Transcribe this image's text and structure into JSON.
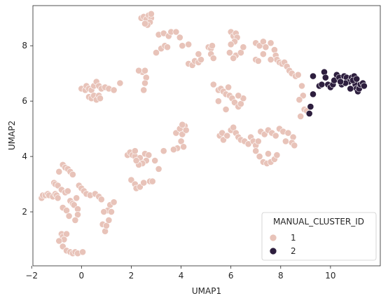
{
  "chart_data": {
    "type": "scatter",
    "title": "",
    "xlabel": "UMAP1",
    "ylabel": "UMAP2",
    "xlim": [
      -1.95,
      12.0
    ],
    "ylim": [
      0.05,
      9.45
    ],
    "xticks": [
      "-2",
      "0",
      "2",
      "4",
      "6",
      "8",
      "10"
    ],
    "yticks": [
      "2",
      "4",
      "6",
      "8"
    ],
    "grid": false,
    "legend": {
      "title": "MANUAL_CLUSTER_ID",
      "placement": "bottom-right"
    },
    "series": [
      {
        "name": "1",
        "color": "#e8c3b9",
        "points": [
          [
            -1.6,
            2.5
          ],
          [
            -1.55,
            2.6
          ],
          [
            -1.45,
            2.6
          ],
          [
            -1.35,
            2.65
          ],
          [
            -1.3,
            2.6
          ],
          [
            -1.15,
            2.55
          ],
          [
            -1.05,
            2.65
          ],
          [
            -1.0,
            2.6
          ],
          [
            -0.95,
            2.5
          ],
          [
            -1.1,
            3.05
          ],
          [
            -1.05,
            3.0
          ],
          [
            -0.95,
            2.95
          ],
          [
            -0.9,
            3.45
          ],
          [
            -0.75,
            3.7
          ],
          [
            -0.65,
            3.6
          ],
          [
            -0.55,
            3.55
          ],
          [
            -0.45,
            3.45
          ],
          [
            -0.35,
            3.35
          ],
          [
            -0.8,
            2.8
          ],
          [
            -0.65,
            2.7
          ],
          [
            -0.55,
            2.75
          ],
          [
            -0.75,
            2.15
          ],
          [
            -0.6,
            2.05
          ],
          [
            -0.5,
            1.85
          ],
          [
            -0.45,
            2.4
          ],
          [
            -0.35,
            2.3
          ],
          [
            -0.3,
            2.25
          ],
          [
            -0.2,
            2.5
          ],
          [
            -0.15,
            2.1
          ],
          [
            -0.15,
            1.9
          ],
          [
            -0.25,
            1.7
          ],
          [
            -0.8,
            1.2
          ],
          [
            -0.75,
            1.1
          ],
          [
            -0.6,
            1.2
          ],
          [
            -0.7,
            1.0
          ],
          [
            -0.9,
            0.95
          ],
          [
            -0.75,
            0.75
          ],
          [
            -0.6,
            0.6
          ],
          [
            -0.45,
            0.55
          ],
          [
            -0.35,
            0.5
          ],
          [
            -0.25,
            0.55
          ],
          [
            -0.15,
            0.5
          ],
          [
            0.05,
            0.55
          ],
          [
            -0.1,
            2.95
          ],
          [
            0.0,
            2.85
          ],
          [
            0.1,
            2.75
          ],
          [
            0.2,
            2.65
          ],
          [
            0.35,
            2.6
          ],
          [
            0.55,
            2.65
          ],
          [
            0.7,
            2.55
          ],
          [
            0.8,
            2.45
          ],
          [
            0.0,
            6.45
          ],
          [
            0.15,
            6.4
          ],
          [
            0.2,
            6.55
          ],
          [
            0.3,
            6.45
          ],
          [
            0.4,
            6.4
          ],
          [
            0.5,
            6.55
          ],
          [
            0.6,
            6.7
          ],
          [
            0.7,
            6.55
          ],
          [
            0.8,
            6.45
          ],
          [
            0.95,
            6.5
          ],
          [
            1.1,
            6.45
          ],
          [
            1.3,
            6.4
          ],
          [
            1.55,
            6.65
          ],
          [
            0.3,
            6.15
          ],
          [
            0.4,
            6.1
          ],
          [
            0.5,
            6.2
          ],
          [
            0.6,
            6.05
          ],
          [
            0.7,
            6.2
          ],
          [
            0.75,
            6.1
          ],
          [
            0.85,
            1.55
          ],
          [
            0.95,
            1.3
          ],
          [
            1.0,
            1.5
          ],
          [
            1.1,
            1.7
          ],
          [
            1.05,
            2.05
          ],
          [
            1.2,
            2.0
          ],
          [
            1.15,
            2.25
          ],
          [
            1.3,
            2.35
          ],
          [
            0.9,
            2.0
          ],
          [
            1.85,
            4.05
          ],
          [
            1.95,
            4.15
          ],
          [
            2.05,
            4.05
          ],
          [
            2.15,
            4.0
          ],
          [
            2.35,
            3.95
          ],
          [
            2.55,
            4.1
          ],
          [
            2.7,
            4.05
          ],
          [
            2.6,
            3.85
          ],
          [
            2.45,
            3.75
          ],
          [
            2.3,
            3.7
          ],
          [
            2.2,
            3.85
          ],
          [
            2.0,
            3.15
          ],
          [
            2.15,
            3.0
          ],
          [
            2.2,
            2.85
          ],
          [
            2.35,
            2.9
          ],
          [
            2.5,
            3.05
          ],
          [
            2.75,
            3.1
          ],
          [
            2.95,
            3.85
          ],
          [
            3.3,
            4.2
          ],
          [
            3.1,
            3.55
          ],
          [
            2.15,
            4.2
          ],
          [
            2.85,
            3.1
          ],
          [
            2.4,
            9.0
          ],
          [
            2.5,
            9.05
          ],
          [
            2.6,
            8.95
          ],
          [
            2.7,
            9.1
          ],
          [
            2.8,
            9.0
          ],
          [
            2.75,
            8.85
          ],
          [
            2.65,
            8.75
          ],
          [
            2.55,
            8.8
          ],
          [
            2.8,
            9.15
          ],
          [
            2.45,
            7.05
          ],
          [
            2.55,
            7.1
          ],
          [
            2.6,
            6.85
          ],
          [
            2.55,
            6.65
          ],
          [
            2.5,
            6.4
          ],
          [
            2.3,
            7.1
          ],
          [
            3.1,
            8.4
          ],
          [
            3.3,
            8.45
          ],
          [
            3.5,
            8.35
          ],
          [
            3.6,
            8.5
          ],
          [
            3.8,
            8.5
          ],
          [
            3.95,
            8.3
          ],
          [
            4.05,
            8.0
          ],
          [
            4.3,
            8.05
          ],
          [
            3.2,
            7.9
          ],
          [
            3.35,
            8.0
          ],
          [
            3.45,
            7.95
          ],
          [
            3.0,
            7.75
          ],
          [
            4.3,
            7.35
          ],
          [
            4.45,
            7.3
          ],
          [
            4.55,
            7.45
          ],
          [
            4.7,
            7.4
          ],
          [
            4.8,
            7.5
          ],
          [
            4.7,
            7.7
          ],
          [
            3.8,
            4.85
          ],
          [
            3.95,
            5.0
          ],
          [
            4.05,
            4.8
          ],
          [
            4.15,
            5.1
          ],
          [
            4.2,
            4.95
          ],
          [
            4.05,
            5.15
          ],
          [
            4.0,
            4.55
          ],
          [
            4.1,
            4.35
          ],
          [
            3.85,
            4.3
          ],
          [
            3.7,
            4.25
          ],
          [
            5.1,
            7.95
          ],
          [
            5.2,
            7.9
          ],
          [
            5.25,
            8.0
          ],
          [
            5.2,
            7.7
          ],
          [
            5.3,
            7.55
          ],
          [
            6.0,
            8.5
          ],
          [
            6.1,
            8.35
          ],
          [
            6.2,
            8.45
          ],
          [
            6.25,
            8.3
          ],
          [
            6.15,
            8.15
          ],
          [
            6.0,
            8.05
          ],
          [
            5.95,
            7.75
          ],
          [
            6.2,
            7.65
          ],
          [
            6.4,
            7.75
          ],
          [
            6.1,
            7.55
          ],
          [
            6.5,
            7.95
          ],
          [
            7.0,
            8.1
          ],
          [
            7.15,
            8.0
          ],
          [
            7.3,
            8.15
          ],
          [
            7.4,
            7.95
          ],
          [
            7.6,
            8.1
          ],
          [
            7.75,
            7.85
          ],
          [
            7.8,
            7.65
          ],
          [
            7.85,
            7.5
          ],
          [
            7.6,
            7.5
          ],
          [
            7.3,
            7.7
          ],
          [
            7.0,
            7.5
          ],
          [
            7.1,
            7.45
          ],
          [
            7.95,
            7.4
          ],
          [
            8.05,
            7.35
          ],
          [
            8.15,
            7.4
          ],
          [
            8.25,
            7.25
          ],
          [
            8.35,
            7.1
          ],
          [
            8.45,
            7.0
          ],
          [
            8.6,
            6.9
          ],
          [
            8.7,
            6.95
          ],
          [
            8.85,
            6.55
          ],
          [
            8.9,
            6.2
          ],
          [
            8.75,
            6.05
          ],
          [
            8.95,
            5.7
          ],
          [
            9.05,
            5.65
          ],
          [
            8.8,
            5.45
          ],
          [
            5.3,
            6.6
          ],
          [
            5.5,
            6.4
          ],
          [
            5.6,
            6.45
          ],
          [
            5.7,
            6.35
          ],
          [
            5.8,
            6.25
          ],
          [
            5.9,
            6.5
          ],
          [
            5.95,
            6.2
          ],
          [
            6.05,
            6.1
          ],
          [
            6.15,
            5.95
          ],
          [
            6.3,
            5.8
          ],
          [
            6.4,
            5.9
          ],
          [
            6.5,
            6.1
          ],
          [
            6.3,
            6.2
          ],
          [
            5.5,
            6.0
          ],
          [
            5.8,
            5.7
          ],
          [
            5.55,
            4.75
          ],
          [
            5.65,
            4.85
          ],
          [
            5.7,
            4.6
          ],
          [
            5.85,
            4.75
          ],
          [
            6.0,
            4.95
          ],
          [
            6.1,
            5.05
          ],
          [
            6.2,
            4.85
          ],
          [
            6.3,
            4.7
          ],
          [
            6.4,
            4.6
          ],
          [
            6.55,
            4.55
          ],
          [
            6.7,
            4.45
          ],
          [
            6.8,
            4.7
          ],
          [
            6.9,
            4.55
          ],
          [
            7.0,
            4.4
          ],
          [
            7.1,
            4.55
          ],
          [
            7.2,
            4.9
          ],
          [
            7.35,
            4.8
          ],
          [
            7.5,
            4.95
          ],
          [
            7.65,
            4.85
          ],
          [
            7.8,
            4.75
          ],
          [
            7.95,
            5.0
          ],
          [
            8.1,
            4.9
          ],
          [
            8.3,
            4.85
          ],
          [
            8.5,
            4.7
          ],
          [
            8.45,
            4.5
          ],
          [
            8.55,
            4.4
          ],
          [
            8.2,
            4.55
          ],
          [
            7.0,
            4.2
          ],
          [
            7.15,
            4.0
          ],
          [
            7.3,
            3.8
          ],
          [
            7.45,
            3.75
          ],
          [
            7.6,
            3.8
          ],
          [
            7.75,
            3.9
          ],
          [
            7.85,
            4.05
          ],
          [
            7.5,
            4.1
          ]
        ]
      },
      {
        "name": "2",
        "color": "#2d1e3e",
        "points": [
          [
            9.15,
            5.55
          ],
          [
            9.2,
            5.8
          ],
          [
            9.3,
            6.25
          ],
          [
            9.3,
            6.9
          ],
          [
            9.55,
            6.55
          ],
          [
            9.65,
            6.6
          ],
          [
            9.75,
            7.05
          ],
          [
            9.8,
            6.85
          ],
          [
            9.9,
            6.6
          ],
          [
            10.0,
            6.5
          ],
          [
            10.1,
            6.6
          ],
          [
            10.15,
            6.75
          ],
          [
            10.25,
            6.95
          ],
          [
            10.35,
            6.85
          ],
          [
            10.45,
            6.6
          ],
          [
            10.55,
            6.9
          ],
          [
            10.65,
            6.85
          ],
          [
            10.75,
            6.7
          ],
          [
            10.85,
            6.85
          ],
          [
            10.95,
            6.9
          ],
          [
            11.0,
            6.6
          ],
          [
            11.05,
            6.45
          ],
          [
            11.1,
            6.35
          ],
          [
            11.15,
            6.45
          ],
          [
            11.2,
            6.6
          ],
          [
            11.3,
            6.65
          ],
          [
            11.35,
            6.55
          ],
          [
            10.8,
            6.45
          ],
          [
            10.9,
            6.75
          ],
          [
            11.05,
            6.8
          ],
          [
            10.6,
            6.65
          ],
          [
            10.4,
            6.7
          ]
        ]
      }
    ]
  }
}
